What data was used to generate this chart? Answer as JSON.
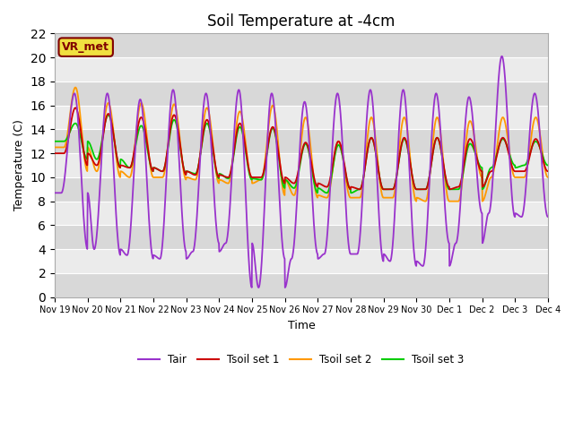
{
  "title": "Soil Temperature at -4cm",
  "xlabel": "Time",
  "ylabel": "Temperature (C)",
  "ylim": [
    0,
    22
  ],
  "annotation": "VR_met",
  "bg_color": "#ffffff",
  "band_colors": [
    "#d8d8d8",
    "#ebebeb"
  ],
  "colors": {
    "Tair": "#9933cc",
    "Tsoil1": "#cc0000",
    "Tsoil2": "#ff9900",
    "Tsoil3": "#00cc00"
  },
  "legend_labels": [
    "Tair",
    "Tsoil set 1",
    "Tsoil set 2",
    "Tsoil set 3"
  ],
  "xtick_labels": [
    "Nov 19",
    "Nov 20",
    "Nov 21",
    "Nov 22",
    "Nov 23",
    "Nov 24",
    "Nov 25",
    "Nov 26",
    "Nov 27",
    "Nov 28",
    "Nov 29",
    "Nov 30",
    "Dec 1",
    "Dec 2",
    "Dec 3",
    "Dec 4"
  ],
  "n_days": 16
}
